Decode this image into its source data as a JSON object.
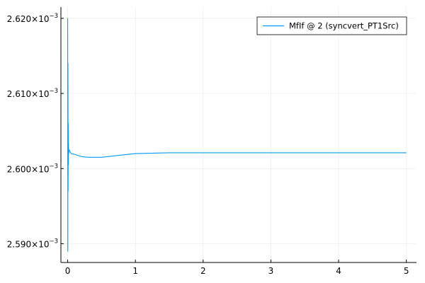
{
  "chart_data": {
    "type": "line",
    "title": "",
    "xlabel": "",
    "ylabel": "",
    "xlim": [
      -0.1,
      5.15
    ],
    "ylim": [
      0.0025875,
      0.0026215
    ],
    "x_ticks": [
      0,
      1,
      2,
      3,
      4,
      5
    ],
    "x_tick_labels": [
      "0",
      "1",
      "2",
      "3",
      "4",
      "5"
    ],
    "y_ticks": [
      0.00259,
      0.0026,
      0.00261,
      0.00262
    ],
    "y_tick_mantissas": [
      "2.590",
      "2.600",
      "2.610",
      "2.620"
    ],
    "y_tick_multiplier": "×10",
    "y_tick_exponent": "−3",
    "grid": true,
    "legend_position": "top-right",
    "series": [
      {
        "name": "MfIf @ 2 (syncvert_PT1Src)",
        "color": "#009af9",
        "x": [
          0,
          0.002,
          0.004,
          0.006,
          0.008,
          0.01,
          0.012,
          0.015,
          0.02,
          0.05,
          0.1,
          0.2,
          0.3,
          0.4,
          0.5,
          0.7,
          1.0,
          1.5,
          2.0,
          3.0,
          4.0,
          5.0
        ],
        "y": [
          0.00262,
          0.002589,
          0.002614,
          0.002597,
          0.002606,
          0.0026005,
          0.0026035,
          0.002602,
          0.0026025,
          0.002602,
          0.0026019,
          0.0026016,
          0.0026015,
          0.0026015,
          0.0026015,
          0.0026017,
          0.002602,
          0.0026021,
          0.0026021,
          0.0026021,
          0.0026021,
          0.0026021
        ]
      }
    ]
  }
}
